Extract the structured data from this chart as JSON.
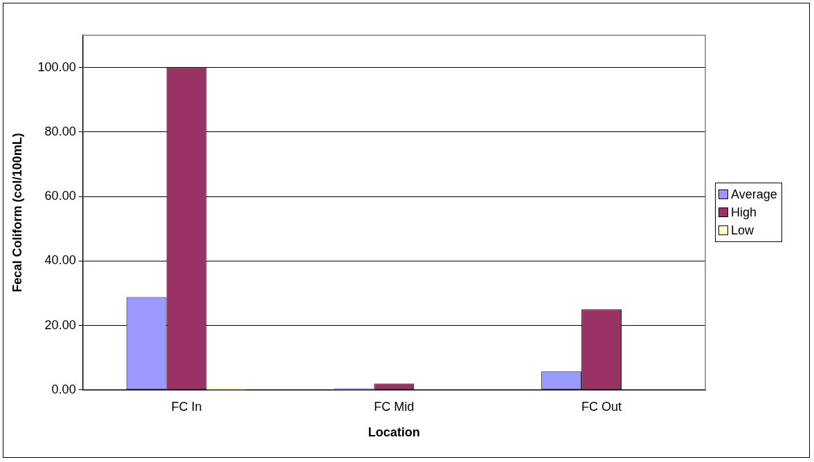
{
  "chart_data": {
    "type": "bar",
    "xlabel": "Location",
    "ylabel": "Fecal Coliform (col/100mL)",
    "categories": [
      "FC In",
      "FC Mid",
      "FC Out"
    ],
    "series": [
      {
        "name": "Average",
        "color": "#9999ff",
        "values": [
          28.8,
          0.5,
          5.7
        ]
      },
      {
        "name": "High",
        "color": "#993366",
        "values": [
          100,
          2,
          25
        ]
      },
      {
        "name": "Low",
        "color": "#ffffcc",
        "values": [
          1,
          0,
          0
        ]
      }
    ],
    "ylim": [
      0,
      110
    ],
    "yticks": [
      {
        "value": 0,
        "label": "0.00"
      },
      {
        "value": 20,
        "label": "20.00"
      },
      {
        "value": 40,
        "label": "40.00"
      },
      {
        "value": 60,
        "label": "60.00"
      },
      {
        "value": 80,
        "label": "80.00"
      },
      {
        "value": 100,
        "label": "100.00"
      }
    ],
    "grid": "y",
    "legend": "right"
  }
}
